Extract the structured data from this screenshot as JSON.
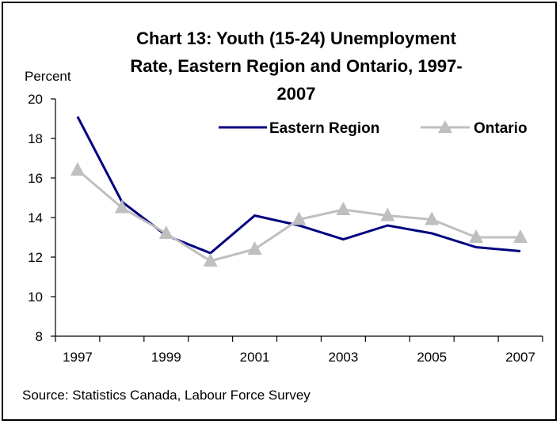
{
  "chart_data": {
    "type": "line",
    "title_lines": [
      "Chart 13: Youth (15-24) Unemployment",
      "Rate, Eastern Region and Ontario, 1997-",
      "2007"
    ],
    "ylabel": "Percent",
    "xlabel": "",
    "source": "Source: Statistics Canada, Labour Force Survey",
    "x": [
      1997,
      1998,
      1999,
      2000,
      2001,
      2002,
      2003,
      2004,
      2005,
      2006,
      2007
    ],
    "x_tick_labels": [
      "1997",
      "1999",
      "2001",
      "2003",
      "2005",
      "2007"
    ],
    "y_ticks": [
      8,
      10,
      12,
      14,
      16,
      18,
      20
    ],
    "ylim": [
      8,
      20
    ],
    "grid": false,
    "legend_position": "top-right",
    "series": [
      {
        "name": "Eastern Region",
        "color": "#000080",
        "marker": "none",
        "values": [
          19.1,
          14.8,
          13.1,
          12.2,
          14.1,
          13.6,
          12.9,
          13.6,
          13.2,
          12.5,
          12.3
        ]
      },
      {
        "name": "Ontario",
        "color": "#bfbfbf",
        "marker": "triangle",
        "values": [
          16.4,
          14.5,
          13.2,
          11.8,
          12.4,
          13.9,
          14.4,
          14.1,
          13.9,
          13.0,
          13.0
        ]
      }
    ]
  }
}
